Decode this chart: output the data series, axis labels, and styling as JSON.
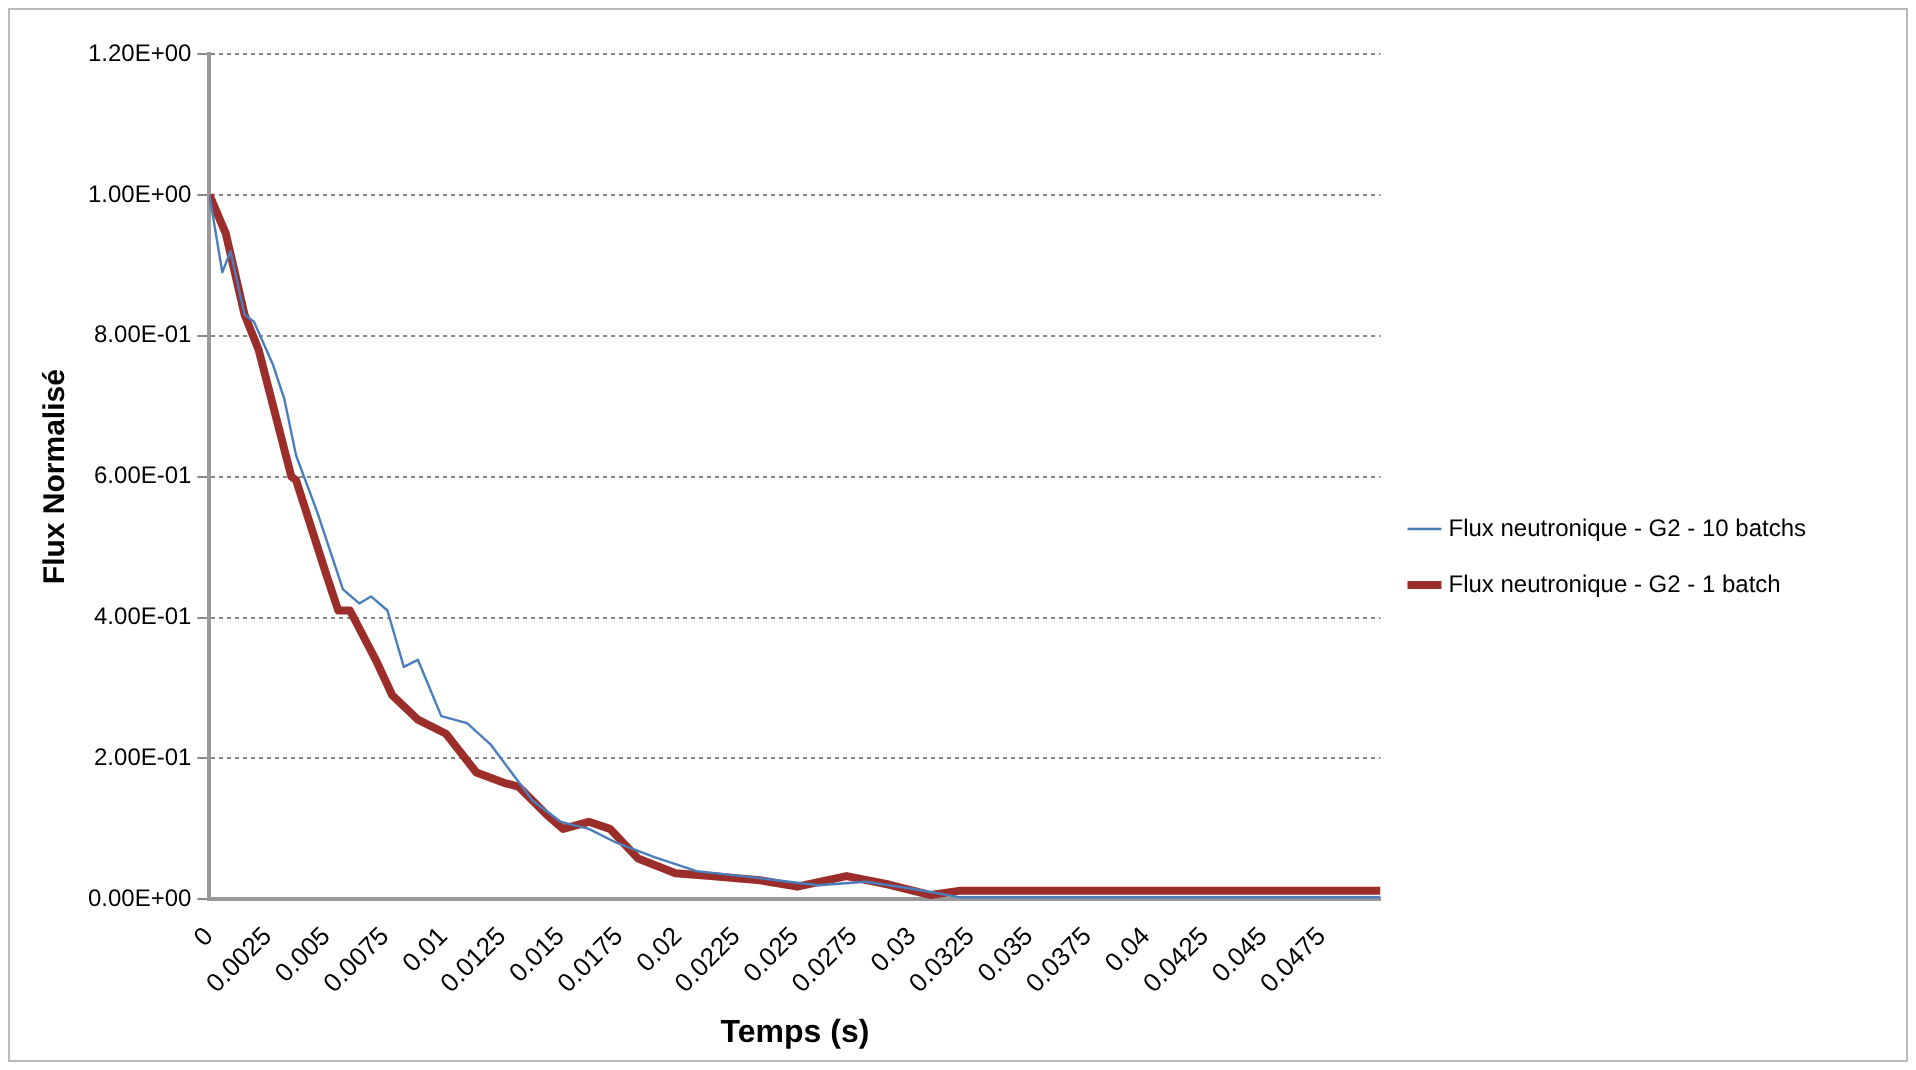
{
  "chart_data": {
    "type": "line",
    "xlabel": "Temps (s)",
    "ylabel": "Flux Normalisé",
    "xlim": [
      0,
      0.05
    ],
    "xticks": [
      0,
      0.0025,
      0.005,
      0.0075,
      0.01,
      0.0125,
      0.015,
      0.0175,
      0.02,
      0.0225,
      0.025,
      0.0275,
      0.03,
      0.0325,
      0.035,
      0.0375,
      0.04,
      0.0425,
      0.045,
      0.0475
    ],
    "ylim": [
      0,
      1.2
    ],
    "yticks": [
      {
        "value": 0,
        "label": "0.00E+00"
      },
      {
        "value": 0.2,
        "label": "2.00E-01"
      },
      {
        "value": 0.4,
        "label": "4.00E-01"
      },
      {
        "value": 0.6,
        "label": "6.00E-01"
      },
      {
        "value": 0.8,
        "label": "8.00E-01"
      },
      {
        "value": 1.0,
        "label": "1.00E+00"
      },
      {
        "value": 1.2,
        "label": "1.20E+00"
      }
    ],
    "grid": "y",
    "legend": "right",
    "marker": "none",
    "series": [
      {
        "name": "Flux neutronique - G2 - 10 batchs",
        "color": "#4a7ebb",
        "x": [
          0,
          0.00055,
          0.0009,
          0.0015,
          0.0019,
          0.0027,
          0.0032,
          0.0037,
          0.0046,
          0.0051,
          0.0057,
          0.0064,
          0.0069,
          0.0076,
          0.0083,
          0.0089,
          0.0099,
          0.011,
          0.012,
          0.0129,
          0.0138,
          0.015,
          0.0162,
          0.0174,
          0.019,
          0.0208,
          0.0235,
          0.026,
          0.028,
          0.03,
          0.032,
          0.05
        ],
        "values": [
          1.0,
          0.89,
          0.92,
          0.83,
          0.82,
          0.76,
          0.71,
          0.63,
          0.55,
          0.5,
          0.44,
          0.42,
          0.43,
          0.41,
          0.33,
          0.34,
          0.26,
          0.25,
          0.22,
          0.18,
          0.14,
          0.11,
          0.1,
          0.08,
          0.06,
          0.04,
          0.03,
          0.02,
          0.025,
          0.015,
          0.003,
          0.003
        ]
      },
      {
        "name": "Flux neutronique - G2 - 1 batch",
        "color": "#9b2d2a",
        "x": [
          0,
          0.0007,
          0.0015,
          0.0021,
          0.0035,
          0.0037,
          0.005,
          0.0055,
          0.006,
          0.0071,
          0.0078,
          0.0089,
          0.0101,
          0.0114,
          0.0126,
          0.0132,
          0.0144,
          0.0151,
          0.0162,
          0.0171,
          0.0183,
          0.0199,
          0.0214,
          0.0235,
          0.0251,
          0.0272,
          0.029,
          0.0308,
          0.032,
          0.05
        ],
        "values": [
          1.0,
          0.945,
          0.83,
          0.78,
          0.6,
          0.595,
          0.46,
          0.41,
          0.41,
          0.34,
          0.29,
          0.255,
          0.235,
          0.18,
          0.165,
          0.16,
          0.12,
          0.1,
          0.11,
          0.1,
          0.058,
          0.037,
          0.033,
          0.027,
          0.018,
          0.033,
          0.021,
          0.006,
          0.012,
          0.012
        ]
      }
    ]
  }
}
